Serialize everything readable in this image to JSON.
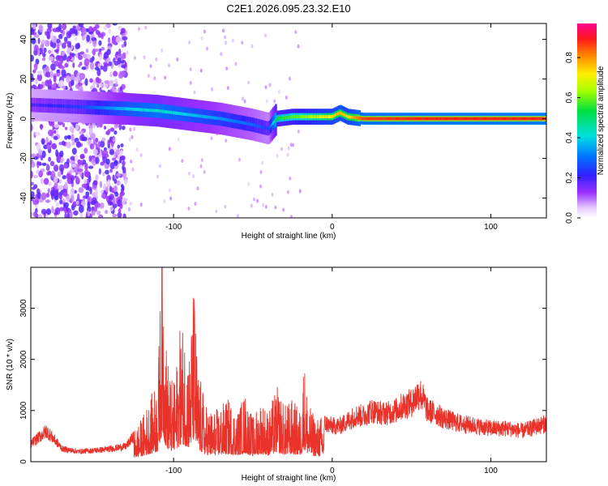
{
  "title": "C2E1.2026.095.23.32.E10",
  "colors": {
    "snr_line": "#e8322a",
    "background": "#ffffff",
    "frame": "#000000"
  },
  "chart_data": [
    {
      "type": "heatmap",
      "xlabel": "Height of straight line (km)",
      "ylabel": "Frequency (Hz)",
      "xlim": [
        -190,
        135
      ],
      "ylim": [
        -50,
        48
      ],
      "xticks": [
        -100,
        0,
        100
      ],
      "yticks": [
        -40,
        -20,
        0,
        20,
        40
      ],
      "grid": false,
      "colorbar": {
        "label": "Normalized spectral amplitude",
        "range": [
          0,
          0.97
        ],
        "ticks": [
          0.0,
          0.2,
          0.4,
          0.6,
          0.8
        ],
        "tick_labels": [
          "0.0",
          "0.2",
          "0.4",
          "0.6",
          "0.8"
        ],
        "colormap": "white-violet-blue-cyan-green-yellow-orange-red-magenta"
      },
      "description_series": [
        {
          "name": "diffuse noise region",
          "x_range": [
            -190,
            -130
          ],
          "freq_range": [
            -50,
            48
          ],
          "amplitude": 0.15
        },
        {
          "name": "main band",
          "x": [
            -190,
            -160,
            -130,
            -110,
            -90,
            -70,
            -50,
            -40,
            -35,
            -25,
            -15,
            0,
            5,
            10,
            20,
            60,
            100,
            135
          ],
          "freq": [
            7,
            6,
            5,
            4,
            2,
            0,
            -3,
            -5,
            0,
            1,
            1,
            1,
            3,
            1,
            0,
            0,
            0,
            0
          ],
          "amplitude": [
            0.2,
            0.25,
            0.4,
            0.45,
            0.4,
            0.35,
            0.3,
            0.25,
            0.55,
            0.6,
            0.65,
            0.75,
            0.8,
            0.75,
            0.9,
            0.92,
            0.92,
            0.92
          ]
        }
      ]
    },
    {
      "type": "line",
      "xlabel": "Height of straight line (km)",
      "ylabel": "SNR (10 * v/v)",
      "xlim": [
        -190,
        135
      ],
      "ylim": [
        0,
        3800
      ],
      "xticks": [
        -100,
        0,
        100
      ],
      "yticks": [
        0,
        1000,
        2000,
        3000
      ],
      "grid": false,
      "series": [
        {
          "x": [
            -190,
            -180,
            -170,
            -160,
            -150,
            -140,
            -130,
            -125,
            -120,
            -115,
            -110,
            -107,
            -105,
            -103,
            -100,
            -95,
            -90,
            -87,
            -85,
            -82,
            -80,
            -75,
            -70,
            -65,
            -60,
            -55,
            -50,
            -45,
            -40,
            -35,
            -30,
            -25,
            -20,
            -18,
            -15,
            -10,
            -5,
            0,
            5,
            10,
            15,
            20,
            25,
            30,
            35,
            40,
            45,
            50,
            55,
            57,
            60,
            65,
            70,
            75,
            80,
            90,
            100,
            110,
            120,
            130,
            135
          ],
          "y": [
            350,
            600,
            250,
            200,
            220,
            250,
            300,
            500,
            700,
            1000,
            1300,
            3800,
            2000,
            1500,
            1200,
            2300,
            1800,
            2900,
            1500,
            1200,
            900,
            800,
            900,
            1000,
            800,
            1100,
            700,
            1000,
            800,
            1200,
            900,
            1000,
            800,
            1700,
            900,
            700,
            750,
            700,
            700,
            800,
            900,
            900,
            1000,
            950,
            950,
            1000,
            1100,
            1150,
            1350,
            1250,
            1000,
            950,
            850,
            800,
            750,
            700,
            650,
            650,
            600,
            700,
            750
          ]
        }
      ]
    }
  ]
}
